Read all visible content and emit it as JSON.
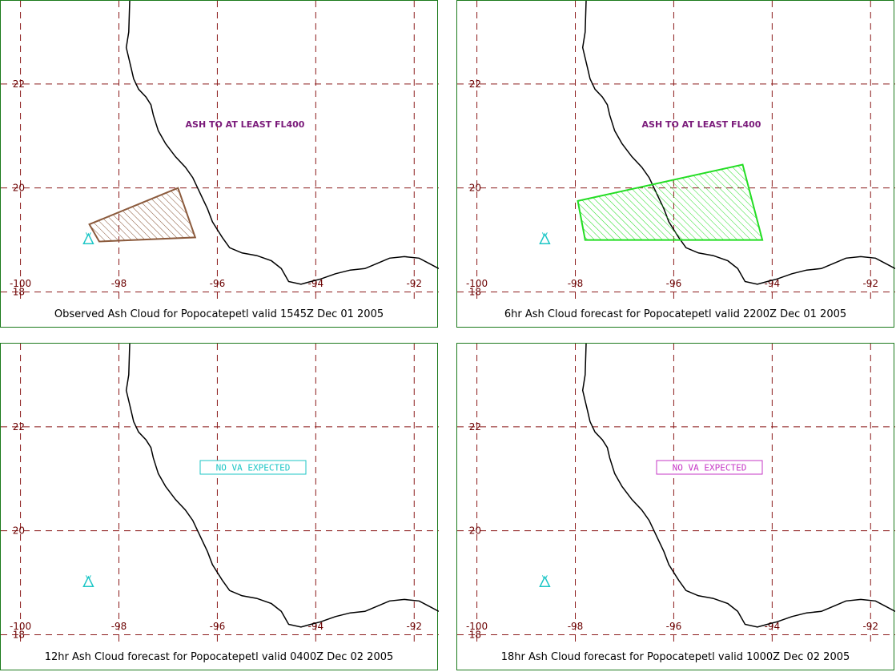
{
  "panels": [
    {
      "caption": "Observed Ash Cloud for Popocatepetl valid 1545Z Dec 01 2005",
      "note": "ASH TO AT LEAST FL400",
      "note_style": "plain",
      "ash_polygon": [
        [
          -98.6,
          19.3
        ],
        [
          -96.8,
          20.0
        ],
        [
          -96.45,
          19.05
        ],
        [
          -98.4,
          18.97
        ]
      ],
      "polygon_color": "#8b5a3c"
    },
    {
      "caption": "6hr Ash Cloud forecast for Popocatepetl valid 2200Z Dec 01 2005",
      "note": "ASH TO AT LEAST FL400",
      "note_style": "plain",
      "ash_polygon": [
        [
          -97.95,
          19.75
        ],
        [
          -94.6,
          20.45
        ],
        [
          -94.2,
          19.0
        ],
        [
          -97.8,
          19.0
        ]
      ],
      "polygon_color": "#22dd22"
    },
    {
      "caption": "12hr Ash Cloud forecast for Popocatepetl valid 0400Z Dec 02 2005",
      "note": "NO VA EXPECTED",
      "note_style": "boxed",
      "note_color": "#1cc6c6",
      "ash_polygon": null
    },
    {
      "caption": "18hr Ash Cloud forecast for Popocatepetl valid 1000Z Dec 02 2005",
      "note": "NO VA EXPECTED",
      "note_style": "boxed",
      "note_color": "#c637c6",
      "ash_polygon": null
    }
  ],
  "map": {
    "lon_ticks": [
      "-100",
      "-98",
      "-96",
      "-94",
      "-92"
    ],
    "lat_ticks": [
      "22",
      "20",
      "18"
    ],
    "lon_values": [
      -100,
      -98,
      -96,
      -94,
      -92
    ],
    "lat_values": [
      22,
      20,
      18
    ],
    "lon_range": [
      -100.4,
      -91.5
    ],
    "lat_range": [
      17.9,
      23.6
    ],
    "grid_color": "#8b1a1a",
    "coast_color": "#000000",
    "volcano": {
      "icon": "volcano-triangle-icon",
      "lon": -98.62,
      "lat": 19.02,
      "color": "#1cc6c6"
    },
    "coastline": [
      [
        -97.78,
        23.6
      ],
      [
        -97.8,
        23.0
      ],
      [
        -97.85,
        22.7
      ],
      [
        -97.75,
        22.3
      ],
      [
        -97.7,
        22.1
      ],
      [
        -97.6,
        21.9
      ],
      [
        -97.45,
        21.75
      ],
      [
        -97.35,
        21.6
      ],
      [
        -97.3,
        21.4
      ],
      [
        -97.2,
        21.1
      ],
      [
        -97.05,
        20.85
      ],
      [
        -96.85,
        20.6
      ],
      [
        -96.65,
        20.4
      ],
      [
        -96.5,
        20.2
      ],
      [
        -96.35,
        19.9
      ],
      [
        -96.2,
        19.6
      ],
      [
        -96.1,
        19.35
      ],
      [
        -96.0,
        19.2
      ],
      [
        -95.9,
        19.05
      ],
      [
        -95.75,
        18.85
      ],
      [
        -95.5,
        18.75
      ],
      [
        -95.2,
        18.7
      ],
      [
        -94.9,
        18.6
      ],
      [
        -94.7,
        18.45
      ],
      [
        -94.55,
        18.2
      ],
      [
        -94.3,
        18.15
      ],
      [
        -94.1,
        18.2
      ],
      [
        -93.9,
        18.25
      ],
      [
        -93.6,
        18.35
      ],
      [
        -93.3,
        18.42
      ],
      [
        -93.0,
        18.45
      ],
      [
        -92.75,
        18.55
      ],
      [
        -92.5,
        18.65
      ],
      [
        -92.2,
        18.68
      ],
      [
        -91.9,
        18.65
      ],
      [
        -91.7,
        18.55
      ],
      [
        -91.5,
        18.45
      ]
    ]
  }
}
